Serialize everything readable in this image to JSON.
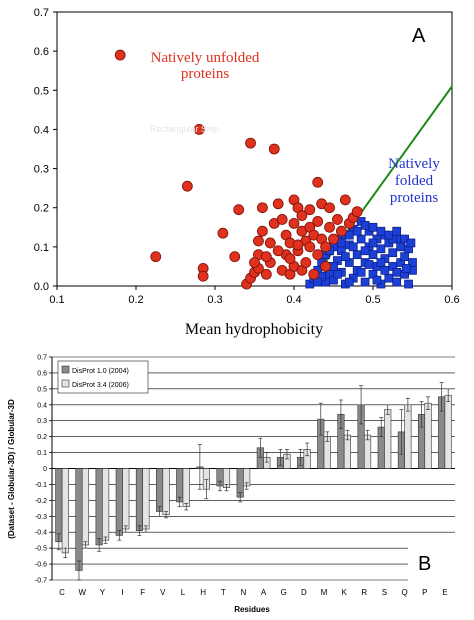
{
  "chart_data": [
    {
      "type": "scatter",
      "panel_label": "A",
      "xlabel": "Mean hydrophobicity",
      "ylabel": "",
      "xlim": [
        0.1,
        0.6
      ],
      "ylim": [
        0.0,
        0.7
      ],
      "xticks": [
        "0.1",
        "0.2",
        "0.3",
        "0.4",
        "0.5",
        "0.6"
      ],
      "yticks": [
        "0.0",
        "0.1",
        "0.2",
        "0.3",
        "0.4",
        "0.5",
        "0.6",
        "0.7"
      ],
      "annotations": [
        {
          "text_lines": [
            "Natively unfolded",
            "proteins"
          ],
          "color": "#e0301e"
        },
        {
          "text_lines": [
            "Natively",
            "folded",
            "proteins"
          ],
          "color": "#2233cc"
        }
      ],
      "watermark": "Rectangular Snip",
      "boundary_line": {
        "color": "#1a8a1a",
        "x": [
          0.418,
          0.6
        ],
        "y": [
          0.0,
          0.51
        ]
      },
      "series": [
        {
          "marker": "circle",
          "color": "#e0301e",
          "points": [
            [
              0.18,
              0.59
            ],
            [
              0.225,
              0.075
            ],
            [
              0.265,
              0.255
            ],
            [
              0.28,
              0.4
            ],
            [
              0.285,
              0.045
            ],
            [
              0.285,
              0.025
            ],
            [
              0.31,
              0.135
            ],
            [
              0.325,
              0.075
            ],
            [
              0.33,
              0.195
            ],
            [
              0.34,
              0.005
            ],
            [
              0.345,
              0.365
            ],
            [
              0.345,
              0.02
            ],
            [
              0.35,
              0.035
            ],
            [
              0.355,
              0.045
            ],
            [
              0.355,
              0.08
            ],
            [
              0.355,
              0.115
            ],
            [
              0.36,
              0.14
            ],
            [
              0.36,
              0.2
            ],
            [
              0.365,
              0.03
            ],
            [
              0.37,
              0.06
            ],
            [
              0.37,
              0.11
            ],
            [
              0.375,
              0.16
            ],
            [
              0.375,
              0.35
            ],
            [
              0.38,
              0.21
            ],
            [
              0.385,
              0.04
            ],
            [
              0.385,
              0.17
            ],
            [
              0.39,
              0.08
            ],
            [
              0.39,
              0.13
            ],
            [
              0.395,
              0.03
            ],
            [
              0.395,
              0.11
            ],
            [
              0.4,
              0.22
            ],
            [
              0.4,
              0.05
            ],
            [
              0.4,
              0.16
            ],
            [
              0.405,
              0.2
            ],
            [
              0.405,
              0.09
            ],
            [
              0.41,
              0.14
            ],
            [
              0.41,
              0.04
            ],
            [
              0.41,
              0.18
            ],
            [
              0.415,
              0.06
            ],
            [
              0.415,
              0.115
            ],
            [
              0.42,
              0.1
            ],
            [
              0.42,
              0.15
            ],
            [
              0.425,
              0.03
            ],
            [
              0.425,
              0.13
            ],
            [
              0.43,
              0.08
            ],
            [
              0.43,
              0.165
            ],
            [
              0.43,
              0.265
            ],
            [
              0.435,
              0.12
            ],
            [
              0.435,
              0.21
            ],
            [
              0.44,
              0.05
            ],
            [
              0.44,
              0.1
            ],
            [
              0.445,
              0.15
            ],
            [
              0.445,
              0.2
            ],
            [
              0.45,
              0.12
            ],
            [
              0.455,
              0.17
            ],
            [
              0.46,
              0.14
            ],
            [
              0.465,
              0.22
            ],
            [
              0.47,
              0.16
            ],
            [
              0.475,
              0.175
            ],
            [
              0.48,
              0.19
            ],
            [
              0.42,
              0.195
            ],
            [
              0.405,
              0.105
            ],
            [
              0.395,
              0.07
            ],
            [
              0.38,
              0.09
            ],
            [
              0.365,
              0.075
            ],
            [
              0.35,
              0.06
            ]
          ]
        },
        {
          "marker": "square",
          "color": "#1c3fd6",
          "points": [
            [
              0.42,
              0.005
            ],
            [
              0.425,
              0.02
            ],
            [
              0.43,
              0.04
            ],
            [
              0.435,
              0.06
            ],
            [
              0.44,
              0.01
            ],
            [
              0.44,
              0.08
            ],
            [
              0.445,
              0.03
            ],
            [
              0.445,
              0.05
            ],
            [
              0.45,
              0.1
            ],
            [
              0.45,
              0.015
            ],
            [
              0.455,
              0.065
            ],
            [
              0.455,
              0.12
            ],
            [
              0.46,
              0.035
            ],
            [
              0.46,
              0.09
            ],
            [
              0.465,
              0.005
            ],
            [
              0.465,
              0.13
            ],
            [
              0.47,
              0.06
            ],
            [
              0.47,
              0.105
            ],
            [
              0.475,
              0.02
            ],
            [
              0.475,
              0.145
            ],
            [
              0.48,
              0.08
            ],
            [
              0.48,
              0.04
            ],
            [
              0.485,
              0.12
            ],
            [
              0.485,
              0.165
            ],
            [
              0.49,
              0.01
            ],
            [
              0.49,
              0.06
            ],
            [
              0.495,
              0.1
            ],
            [
              0.495,
              0.14
            ],
            [
              0.5,
              0.03
            ],
            [
              0.5,
              0.08
            ],
            [
              0.505,
              0.12
            ],
            [
              0.505,
              0.05
            ],
            [
              0.51,
              0.005
            ],
            [
              0.51,
              0.095
            ],
            [
              0.515,
              0.13
            ],
            [
              0.515,
              0.07
            ],
            [
              0.52,
              0.02
            ],
            [
              0.52,
              0.11
            ],
            [
              0.525,
              0.05
            ],
            [
              0.525,
              0.085
            ],
            [
              0.53,
              0.01
            ],
            [
              0.53,
              0.12
            ],
            [
              0.535,
              0.06
            ],
            [
              0.535,
              0.1
            ],
            [
              0.54,
              0.03
            ],
            [
              0.54,
              0.075
            ],
            [
              0.545,
              0.005
            ],
            [
              0.545,
              0.095
            ],
            [
              0.55,
              0.04
            ],
            [
              0.55,
              0.06
            ],
            [
              0.455,
              0.03
            ],
            [
              0.465,
              0.075
            ],
            [
              0.475,
              0.1
            ],
            [
              0.485,
              0.035
            ],
            [
              0.495,
              0.055
            ],
            [
              0.505,
              0.015
            ],
            [
              0.515,
              0.04
            ],
            [
              0.525,
              0.12
            ],
            [
              0.435,
              0.025
            ],
            [
              0.445,
              0.09
            ],
            [
              0.46,
              0.11
            ],
            [
              0.47,
              0.13
            ],
            [
              0.48,
              0.14
            ],
            [
              0.49,
              0.155
            ],
            [
              0.5,
              0.15
            ],
            [
              0.51,
              0.14
            ],
            [
              0.52,
              0.13
            ],
            [
              0.53,
              0.14
            ],
            [
              0.54,
              0.12
            ],
            [
              0.548,
              0.11
            ],
            [
              0.43,
              0.01
            ],
            [
              0.45,
              0.05
            ],
            [
              0.47,
              0.01
            ],
            [
              0.49,
              0.09
            ],
            [
              0.51,
              0.06
            ],
            [
              0.53,
              0.035
            ],
            [
              0.542,
              0.045
            ],
            [
              0.5,
              0.11
            ]
          ]
        }
      ]
    },
    {
      "type": "bar",
      "panel_label": "B",
      "xlabel": "Residues",
      "ylabel": "(Dataset - Globular-3D) / Globular-3D",
      "ylim": [
        -0.7,
        0.7
      ],
      "yticks": [
        "0.7",
        "0.6",
        "0.5",
        "0.4",
        "0.3",
        "0.2",
        "0.1",
        "0",
        "-0.1",
        "-0.2",
        "-0.3",
        "-0.4",
        "-0.5",
        "-0.6",
        "-0.7"
      ],
      "categories": [
        "C",
        "W",
        "Y",
        "I",
        "F",
        "V",
        "L",
        "H",
        "T",
        "N",
        "A",
        "G",
        "D",
        "M",
        "K",
        "R",
        "S",
        "Q",
        "P",
        "E"
      ],
      "series": [
        {
          "name": "DisProt 1.0 (2004)",
          "color": "#8a8a8a",
          "values": [
            -0.46,
            -0.64,
            -0.48,
            -0.42,
            -0.39,
            -0.27,
            -0.21,
            0.01,
            -0.11,
            -0.18,
            0.13,
            0.07,
            0.07,
            0.31,
            0.34,
            0.4,
            0.26,
            0.23,
            0.34,
            0.45
          ],
          "errors": [
            0.05,
            0.06,
            0.04,
            0.03,
            0.03,
            0.03,
            0.03,
            0.14,
            0.03,
            0.03,
            0.06,
            0.05,
            0.05,
            0.1,
            0.09,
            0.12,
            0.06,
            0.14,
            0.08,
            0.09
          ]
        },
        {
          "name": "DisProt 3.4 (2006)",
          "color": "#e4e4e4",
          "values": [
            -0.53,
            -0.48,
            -0.45,
            -0.38,
            -0.38,
            -0.29,
            -0.24,
            -0.13,
            -0.12,
            -0.11,
            0.07,
            0.09,
            0.12,
            0.2,
            0.21,
            0.21,
            0.37,
            0.4,
            0.41,
            0.46
          ],
          "errors": [
            0.03,
            0.02,
            0.02,
            0.02,
            0.02,
            0.02,
            0.02,
            0.06,
            0.02,
            0.02,
            0.03,
            0.03,
            0.04,
            0.03,
            0.03,
            0.03,
            0.03,
            0.04,
            0.04,
            0.04
          ]
        }
      ]
    }
  ]
}
